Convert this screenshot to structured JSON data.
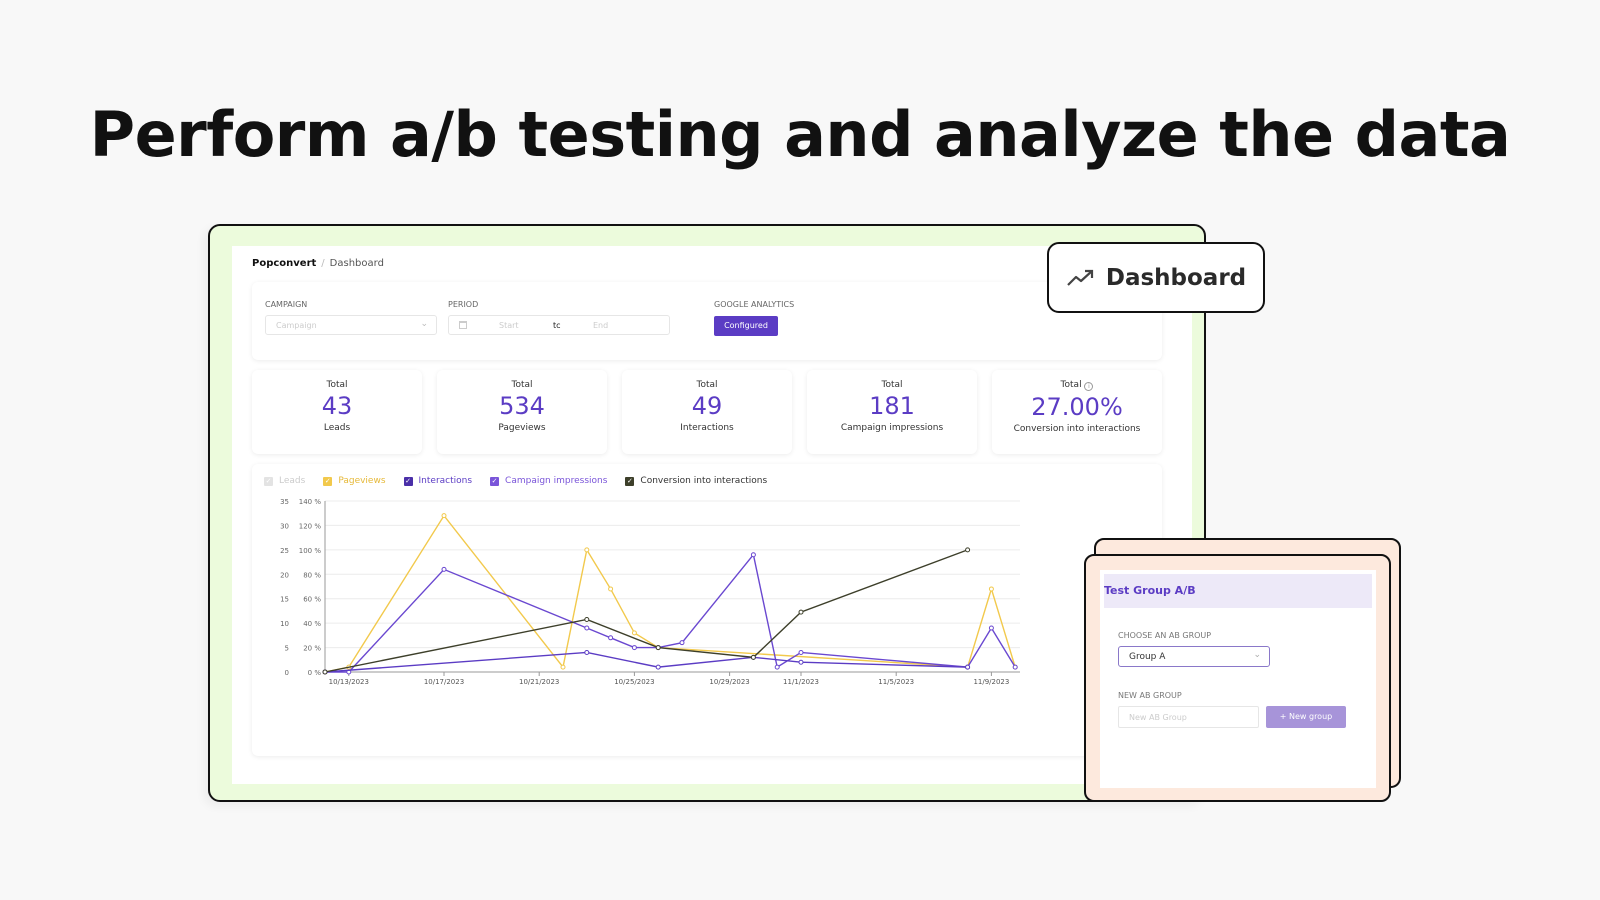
{
  "headline": "Perform a/b testing and analyze the data",
  "breadcrumb": {
    "root": "Popconvert",
    "separator": "/",
    "current": "Dashboard"
  },
  "filters": {
    "campaign": {
      "label": "CAMPAIGN",
      "placeholder": "Campaign"
    },
    "period": {
      "label": "PERIOD",
      "start_placeholder": "Start",
      "to": "tc",
      "end_placeholder": "End"
    },
    "google_analytics": {
      "label": "GOOGLE ANALYTICS",
      "button": "Configured"
    }
  },
  "stats": [
    {
      "title": "Total",
      "value": "43",
      "label": "Leads"
    },
    {
      "title": "Total",
      "value": "534",
      "label": "Pageviews"
    },
    {
      "title": "Total",
      "value": "49",
      "label": "Interactions"
    },
    {
      "title": "Total",
      "value": "181",
      "label": "Campaign impressions"
    },
    {
      "title": "Total",
      "value": "27.00%",
      "label": "Conversion into interactions",
      "info_icon": true
    }
  ],
  "legend": [
    {
      "label": "Leads",
      "color": "#d9d9d9",
      "text_color": "#cccccc",
      "checked": false
    },
    {
      "label": "Pageviews",
      "color": "#f2c94c",
      "text_color": "#e6b93a",
      "checked": true
    },
    {
      "label": "Interactions",
      "color": "#5b3cc4",
      "text_color": "#5b3cc4",
      "checked": true
    },
    {
      "label": "Campaign impressions",
      "color": "#7a55d9",
      "text_color": "#7a55d9",
      "checked": true
    },
    {
      "label": "Conversion into interactions",
      "color": "#3d3f2a",
      "text_color": "#333333",
      "checked": true
    }
  ],
  "chart_data": {
    "type": "line",
    "title": "",
    "xlabel": "",
    "ylabel": "",
    "ylim": [
      0,
      35
    ],
    "y2lim": [
      0,
      140
    ],
    "y_ticks": [
      "0",
      "5",
      "10",
      "15",
      "20",
      "25",
      "30",
      "35"
    ],
    "y2_ticks": [
      "0 %",
      "20 %",
      "40 %",
      "60 %",
      "80 %",
      "100 %",
      "120 %",
      "140 %"
    ],
    "x_tick_labels": [
      "10/13/2023",
      "10/17/2023",
      "10/21/2023",
      "10/25/2023",
      "10/29/2023",
      "11/1/2023",
      "11/5/2023",
      "11/9/2023"
    ],
    "grid": true,
    "legend_position": "top-left",
    "series": [
      {
        "name": "Pageviews",
        "color": "#f2c94c",
        "axis": "left",
        "points": [
          [
            "10/12",
            0
          ],
          [
            "10/13",
            1
          ],
          [
            "10/17",
            32
          ],
          [
            "10/22",
            1
          ],
          [
            "10/23",
            25
          ],
          [
            "10/24",
            17
          ],
          [
            "10/25",
            8
          ],
          [
            "10/26",
            5
          ],
          [
            "11/8",
            1
          ],
          [
            "11/9",
            17
          ],
          [
            "11/10",
            1
          ]
        ]
      },
      {
        "name": "Interactions",
        "color": "#6a48d0",
        "axis": "left",
        "points": [
          [
            "10/12",
            0
          ],
          [
            "10/13",
            0
          ],
          [
            "10/17",
            21
          ],
          [
            "10/23",
            9
          ],
          [
            "10/24",
            7
          ],
          [
            "10/25",
            5
          ],
          [
            "10/26",
            5
          ],
          [
            "10/27",
            6
          ],
          [
            "10/30",
            24
          ],
          [
            "10/31",
            1
          ],
          [
            "11/1",
            4
          ],
          [
            "11/8",
            1
          ],
          [
            "11/9",
            9
          ],
          [
            "11/10",
            1
          ]
        ]
      },
      {
        "name": "Campaign impressions",
        "color": "#5b3cc4",
        "axis": "left",
        "points": [
          [
            "10/12",
            0
          ],
          [
            "10/23",
            4
          ],
          [
            "10/26",
            1
          ],
          [
            "10/30",
            3
          ],
          [
            "11/1",
            2
          ],
          [
            "11/8",
            1
          ]
        ]
      },
      {
        "name": "Conversion into interactions",
        "color": "#3d3f2a",
        "axis": "right",
        "unit": "%",
        "points": [
          [
            "10/12",
            0
          ],
          [
            "10/23",
            43
          ],
          [
            "10/26",
            20
          ],
          [
            "10/30",
            12
          ],
          [
            "11/1",
            49
          ],
          [
            "11/8",
            100
          ]
        ]
      }
    ]
  },
  "badge": {
    "icon": "trending-up-icon",
    "label": "Dashboard"
  },
  "ab_panel": {
    "title": "Test Group A/B",
    "choose_label": "CHOOSE AN AB GROUP",
    "selected_group": "Group A",
    "new_label": "NEW AB GROUP",
    "new_placeholder": "New AB Group",
    "new_button": "+ New group"
  }
}
